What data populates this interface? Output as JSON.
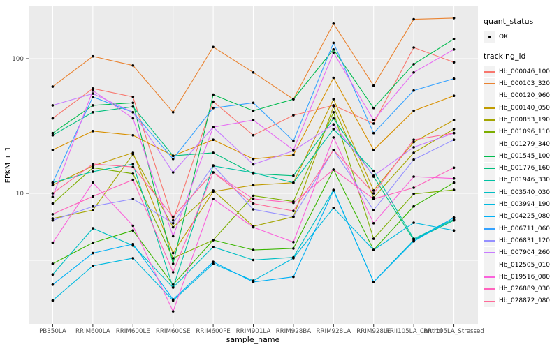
{
  "figure": {
    "panel_background": "#EBEBEB",
    "gridline_color": "#FFFFFF",
    "tick_color": "#333333",
    "tick_label_color": "#4D4D4D",
    "marker_color": "#000000"
  },
  "axes": {
    "x_title": "sample_name",
    "y_title": "FPKM + 1",
    "y_tick_labels": [
      "100",
      "10"
    ],
    "y_tick_values": [
      100,
      10
    ],
    "y_minor_values": [
      31.623,
      3.1623
    ]
  },
  "legend": {
    "quant_title": "quant_status",
    "quant_ok_label": "OK",
    "tracking_title": "tracking_id"
  },
  "chart_data": {
    "type": "line",
    "title": "",
    "xlabel": "sample_name",
    "ylabel": "FPKM + 1",
    "y_scale": "log10",
    "ylim": [
      1.1,
      250
    ],
    "grid": true,
    "legend_position": "right",
    "marker": "black point (quant_status = OK) on every vertex",
    "categories": [
      "PB350LA",
      "RRIM600LA",
      "RRIM600LE",
      "RRIM600SE",
      "RRIM600PE",
      "RRIM901LA",
      "RRIM928BA",
      "RRIM928LA",
      "RRIM928LE",
      "RRII105LA_Control",
      "RRII105LA_Stressed"
    ],
    "series": [
      {
        "name": "Hb_000046_100",
        "color": "#F8766D",
        "values": [
          36,
          60,
          52,
          6.3,
          48,
          27,
          38,
          45,
          33,
          121,
          94
        ]
      },
      {
        "name": "Hb_000103_320",
        "color": "#EA8331",
        "values": [
          62,
          104,
          89,
          40,
          122,
          79,
          50,
          182,
          63,
          196,
          200
        ]
      },
      {
        "name": "Hb_000120_960",
        "color": "#D89000",
        "values": [
          21,
          29,
          27,
          19,
          25,
          18,
          19.3,
          72,
          21,
          41,
          53
        ]
      },
      {
        "name": "Hb_000140_050",
        "color": "#C09B00",
        "values": [
          11.5,
          16,
          20,
          3.6,
          10.3,
          11.5,
          12,
          50,
          10.5,
          24,
          35
        ]
      },
      {
        "name": "Hb_000853_190",
        "color": "#A3A500",
        "values": [
          6.5,
          7.5,
          19.5,
          5.6,
          10.5,
          5.7,
          6.7,
          44,
          9.3,
          20,
          30
        ]
      },
      {
        "name": "Hb_001096_110",
        "color": "#7CAE00",
        "values": [
          8.4,
          15.5,
          14,
          3.3,
          4.5,
          9.6,
          8.7,
          40,
          4.6,
          9.9,
          10.6
        ]
      },
      {
        "name": "Hb_001279_340",
        "color": "#39B600",
        "values": [
          3.0,
          4.3,
          5.3,
          2.1,
          4.5,
          3.8,
          3.9,
          15,
          3.8,
          8.0,
          12
        ]
      },
      {
        "name": "Hb_001545_100",
        "color": "#00BB4E",
        "values": [
          28,
          45,
          47,
          3.0,
          54,
          41,
          50,
          117,
          43,
          91,
          140
        ]
      },
      {
        "name": "Hb_001776_160",
        "color": "#00BF7D",
        "values": [
          27,
          40,
          44,
          19,
          20,
          14,
          13.5,
          36,
          13.3,
          4.5,
          6.3
        ]
      },
      {
        "name": "Hb_001946_330",
        "color": "#00C1A3",
        "values": [
          12,
          14.5,
          16.5,
          2.0,
          16,
          14.2,
          12,
          30,
          14.7,
          4.6,
          6.4
        ]
      },
      {
        "name": "Hb_003540_030",
        "color": "#00BFC4",
        "values": [
          2.5,
          5.5,
          4.1,
          2.0,
          4.0,
          3.2,
          3.35,
          10.6,
          2.2,
          4.5,
          6.6
        ]
      },
      {
        "name": "Hb_003994_190",
        "color": "#00BAE0",
        "values": [
          1.6,
          2.9,
          3.3,
          1.6,
          3.0,
          2.25,
          3.3,
          7.8,
          3.8,
          6.05,
          5.3
        ]
      },
      {
        "name": "Hb_004225_080",
        "color": "#00B0F6",
        "values": [
          2.1,
          3.6,
          4.2,
          1.63,
          3.1,
          2.2,
          2.4,
          10.5,
          2.2,
          4.4,
          6.6
        ]
      },
      {
        "name": "Hb_006711_060",
        "color": "#35A2FF",
        "values": [
          12,
          52,
          40,
          18,
          43,
          47,
          24.5,
          131,
          28,
          58,
          71
        ]
      },
      {
        "name": "Hb_006831_120",
        "color": "#9590FF",
        "values": [
          6.3,
          8.0,
          9.1,
          6.0,
          16.1,
          7.6,
          6.7,
          21,
          7.5,
          17.8,
          25
        ]
      },
      {
        "name": "Hb_007904_260",
        "color": "#C77CFF",
        "values": [
          45,
          55,
          40,
          14.3,
          31,
          16.4,
          20.7,
          32.5,
          13.5,
          22,
          28
        ]
      },
      {
        "name": "Hb_012505_010",
        "color": "#E76BF3",
        "values": [
          9.4,
          58,
          36,
          4.8,
          31,
          35,
          21,
          111,
          35,
          79,
          117
        ]
      },
      {
        "name": "Hb_019516_080",
        "color": "#FA62DB",
        "values": [
          4.3,
          12,
          5.75,
          1.33,
          9.1,
          5.6,
          4.35,
          26,
          6.0,
          13.3,
          12.9
        ]
      },
      {
        "name": "Hb_026889_030",
        "color": "#FF62BC",
        "values": [
          7.0,
          9.5,
          12.6,
          2.6,
          14.3,
          9.1,
          8.5,
          15,
          9.1,
          11,
          15.5
        ]
      },
      {
        "name": "Hb_028872_080",
        "color": "#FF6A98",
        "values": [
          10,
          16.5,
          15.7,
          6.7,
          14.3,
          8.4,
          7.4,
          21,
          10,
          25,
          28
        ]
      }
    ]
  }
}
